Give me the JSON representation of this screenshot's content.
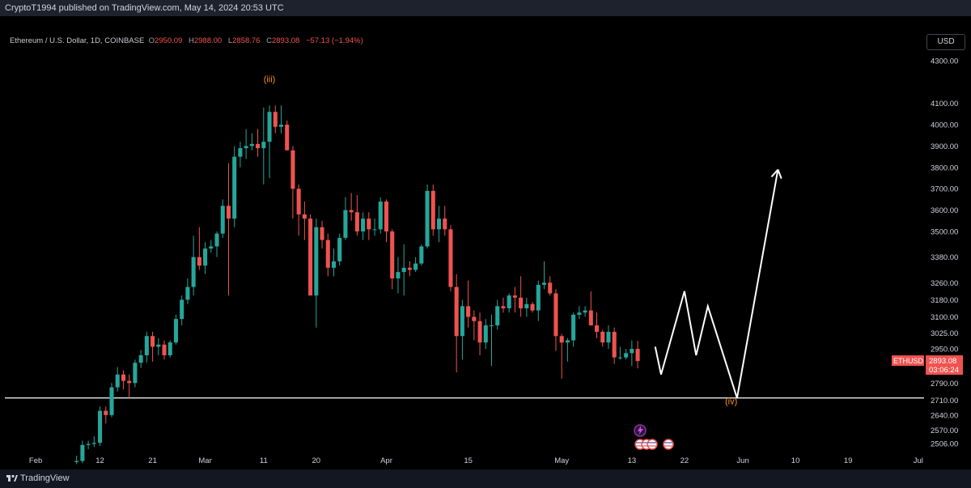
{
  "header": {
    "publish_text": "CryptoT1994 published on TradingView.com, May 14, 2024 20:53 UTC"
  },
  "legend": {
    "symbol_text": "Ethereum / U.S. Dollar, 1D, COINBASE",
    "open_label": "O",
    "open_value": "2950.09",
    "high_label": "H",
    "high_value": "2988.00",
    "low_label": "L",
    "low_value": "2858.76",
    "close_label": "C",
    "close_value": "2893.08",
    "change_text": "−57.13 (−1.94%)"
  },
  "currency_button": "USD",
  "price_tag": {
    "symbol": "ETHUSD",
    "price": "2893.08",
    "countdown": "03:06:24"
  },
  "footer": {
    "brand": "TradingView"
  },
  "colors": {
    "up": "#26a69a",
    "down": "#ef5350",
    "wave_label": "#f7931a",
    "projection": "#ffffff",
    "background": "#000000"
  },
  "icons": [
    "lightning-event-icon",
    "us-flag-event-icon"
  ],
  "chart_data": {
    "type": "candlestick",
    "title": "",
    "y_ticks": [
      4300,
      4100,
      4000,
      3900,
      3800,
      3700,
      3600,
      3500,
      3380,
      3260,
      3180,
      3100,
      3025,
      2950,
      2870,
      2790,
      2710,
      2640,
      2570,
      2506
    ],
    "y_tick_labels": [
      "4300.00",
      "4100.00",
      "4000.00",
      "3900.00",
      "3800.00",
      "3700.00",
      "3600.00",
      "3500.00",
      "3380.00",
      "3260.00",
      "3180.00",
      "3100.00",
      "3025.00",
      "2950.00",
      "2870.00",
      "2790.00",
      "2710.00",
      "2640.00",
      "2570.00",
      "2506.00"
    ],
    "x_labels": [
      {
        "label": "Feb",
        "date": "2024-02-01"
      },
      {
        "label": "12",
        "date": "2024-02-12"
      },
      {
        "label": "21",
        "date": "2024-02-21"
      },
      {
        "label": "Mar",
        "date": "2024-03-01"
      },
      {
        "label": "11",
        "date": "2024-03-11"
      },
      {
        "label": "20",
        "date": "2024-03-20"
      },
      {
        "label": "Apr",
        "date": "2024-04-01"
      },
      {
        "label": "15",
        "date": "2024-04-15"
      },
      {
        "label": "May",
        "date": "2024-05-01"
      },
      {
        "label": "13",
        "date": "2024-05-13"
      },
      {
        "label": "22",
        "date": "2024-05-22"
      },
      {
        "label": "Jun",
        "date": "2024-06-01"
      },
      {
        "label": "10",
        "date": "2024-06-10"
      },
      {
        "label": "19",
        "date": "2024-06-19"
      },
      {
        "label": "Jul",
        "date": "2024-07-01"
      }
    ],
    "series": [
      {
        "name": "ETHUSD",
        "ohlc": [
          {
            "date": "2024-02-08",
            "o": 2420,
            "h": 2450,
            "l": 2410,
            "c": 2425
          },
          {
            "date": "2024-02-09",
            "o": 2425,
            "h": 2520,
            "l": 2415,
            "c": 2500
          },
          {
            "date": "2024-02-10",
            "o": 2500,
            "h": 2520,
            "l": 2480,
            "c": 2505
          },
          {
            "date": "2024-02-11",
            "o": 2505,
            "h": 2540,
            "l": 2490,
            "c": 2510
          },
          {
            "date": "2024-02-12",
            "o": 2510,
            "h": 2680,
            "l": 2495,
            "c": 2660
          },
          {
            "date": "2024-02-13",
            "o": 2660,
            "h": 2680,
            "l": 2600,
            "c": 2640
          },
          {
            "date": "2024-02-14",
            "o": 2640,
            "h": 2790,
            "l": 2630,
            "c": 2770
          },
          {
            "date": "2024-02-15",
            "o": 2770,
            "h": 2865,
            "l": 2750,
            "c": 2830
          },
          {
            "date": "2024-02-16",
            "o": 2830,
            "h": 2850,
            "l": 2760,
            "c": 2800
          },
          {
            "date": "2024-02-17",
            "o": 2800,
            "h": 2830,
            "l": 2720,
            "c": 2790
          },
          {
            "date": "2024-02-18",
            "o": 2790,
            "h": 2900,
            "l": 2770,
            "c": 2885
          },
          {
            "date": "2024-02-19",
            "o": 2885,
            "h": 2945,
            "l": 2860,
            "c": 2920
          },
          {
            "date": "2024-02-20",
            "o": 2920,
            "h": 3030,
            "l": 2885,
            "c": 3010
          },
          {
            "date": "2024-02-21",
            "o": 3010,
            "h": 3030,
            "l": 2890,
            "c": 2960
          },
          {
            "date": "2024-02-22",
            "o": 2960,
            "h": 3000,
            "l": 2920,
            "c": 2970
          },
          {
            "date": "2024-02-23",
            "o": 2970,
            "h": 2990,
            "l": 2900,
            "c": 2920
          },
          {
            "date": "2024-02-24",
            "o": 2920,
            "h": 2990,
            "l": 2910,
            "c": 2980
          },
          {
            "date": "2024-02-25",
            "o": 2980,
            "h": 3110,
            "l": 2970,
            "c": 3090
          },
          {
            "date": "2024-02-26",
            "o": 3090,
            "h": 3200,
            "l": 3060,
            "c": 3180
          },
          {
            "date": "2024-02-27",
            "o": 3180,
            "h": 3280,
            "l": 3160,
            "c": 3240
          },
          {
            "date": "2024-02-28",
            "o": 3240,
            "h": 3480,
            "l": 3200,
            "c": 3380
          },
          {
            "date": "2024-02-29",
            "o": 3380,
            "h": 3520,
            "l": 3320,
            "c": 3340
          },
          {
            "date": "2024-03-01",
            "o": 3340,
            "h": 3450,
            "l": 3300,
            "c": 3420
          },
          {
            "date": "2024-03-02",
            "o": 3420,
            "h": 3460,
            "l": 3400,
            "c": 3430
          },
          {
            "date": "2024-03-03",
            "o": 3430,
            "h": 3500,
            "l": 3380,
            "c": 3490
          },
          {
            "date": "2024-03-04",
            "o": 3490,
            "h": 3650,
            "l": 3470,
            "c": 3620
          },
          {
            "date": "2024-03-05",
            "o": 3620,
            "h": 3820,
            "l": 3200,
            "c": 3560
          },
          {
            "date": "2024-03-06",
            "o": 3560,
            "h": 3900,
            "l": 3520,
            "c": 3850
          },
          {
            "date": "2024-03-07",
            "o": 3850,
            "h": 3920,
            "l": 3800,
            "c": 3890
          },
          {
            "date": "2024-03-08",
            "o": 3890,
            "h": 3980,
            "l": 3840,
            "c": 3900
          },
          {
            "date": "2024-03-09",
            "o": 3900,
            "h": 3960,
            "l": 3880,
            "c": 3910
          },
          {
            "date": "2024-03-10",
            "o": 3910,
            "h": 3980,
            "l": 3850,
            "c": 3890
          },
          {
            "date": "2024-03-11",
            "o": 3890,
            "h": 4080,
            "l": 3720,
            "c": 3920
          },
          {
            "date": "2024-03-12",
            "o": 3920,
            "h": 4090,
            "l": 3750,
            "c": 4060
          },
          {
            "date": "2024-03-13",
            "o": 4060,
            "h": 4090,
            "l": 3960,
            "c": 3990
          },
          {
            "date": "2024-03-14",
            "o": 3990,
            "h": 4090,
            "l": 3960,
            "c": 4000
          },
          {
            "date": "2024-03-15",
            "o": 4000,
            "h": 4020,
            "l": 3880,
            "c": 3880
          },
          {
            "date": "2024-03-16",
            "o": 3880,
            "h": 3900,
            "l": 3560,
            "c": 3700
          },
          {
            "date": "2024-03-17",
            "o": 3700,
            "h": 3720,
            "l": 3480,
            "c": 3580
          },
          {
            "date": "2024-03-18",
            "o": 3580,
            "h": 3640,
            "l": 3460,
            "c": 3560
          },
          {
            "date": "2024-03-19",
            "o": 3560,
            "h": 3580,
            "l": 3200,
            "c": 3200
          },
          {
            "date": "2024-03-20",
            "o": 3200,
            "h": 3560,
            "l": 3050,
            "c": 3520
          },
          {
            "date": "2024-03-21",
            "o": 3520,
            "h": 3550,
            "l": 3420,
            "c": 3460
          },
          {
            "date": "2024-03-22",
            "o": 3460,
            "h": 3490,
            "l": 3290,
            "c": 3330
          },
          {
            "date": "2024-03-23",
            "o": 3330,
            "h": 3420,
            "l": 3290,
            "c": 3360
          },
          {
            "date": "2024-03-24",
            "o": 3360,
            "h": 3490,
            "l": 3340,
            "c": 3470
          },
          {
            "date": "2024-03-25",
            "o": 3470,
            "h": 3660,
            "l": 3460,
            "c": 3600
          },
          {
            "date": "2024-03-26",
            "o": 3600,
            "h": 3680,
            "l": 3550,
            "c": 3590
          },
          {
            "date": "2024-03-27",
            "o": 3590,
            "h": 3670,
            "l": 3480,
            "c": 3500
          },
          {
            "date": "2024-03-28",
            "o": 3500,
            "h": 3590,
            "l": 3460,
            "c": 3560
          },
          {
            "date": "2024-03-29",
            "o": 3560,
            "h": 3590,
            "l": 3460,
            "c": 3510
          },
          {
            "date": "2024-03-30",
            "o": 3510,
            "h": 3560,
            "l": 3480,
            "c": 3510
          },
          {
            "date": "2024-03-31",
            "o": 3510,
            "h": 3660,
            "l": 3490,
            "c": 3640
          },
          {
            "date": "2024-04-01",
            "o": 3640,
            "h": 3650,
            "l": 3450,
            "c": 3500
          },
          {
            "date": "2024-04-02",
            "o": 3500,
            "h": 3510,
            "l": 3230,
            "c": 3280
          },
          {
            "date": "2024-04-03",
            "o": 3280,
            "h": 3380,
            "l": 3210,
            "c": 3310
          },
          {
            "date": "2024-04-04",
            "o": 3310,
            "h": 3440,
            "l": 3200,
            "c": 3330
          },
          {
            "date": "2024-04-05",
            "o": 3330,
            "h": 3360,
            "l": 3290,
            "c": 3320
          },
          {
            "date": "2024-04-06",
            "o": 3320,
            "h": 3380,
            "l": 3310,
            "c": 3350
          },
          {
            "date": "2024-04-07",
            "o": 3350,
            "h": 3440,
            "l": 3340,
            "c": 3430
          },
          {
            "date": "2024-04-08",
            "o": 3430,
            "h": 3720,
            "l": 3420,
            "c": 3690
          },
          {
            "date": "2024-04-09",
            "o": 3690,
            "h": 3720,
            "l": 3480,
            "c": 3510
          },
          {
            "date": "2024-04-10",
            "o": 3510,
            "h": 3620,
            "l": 3450,
            "c": 3560
          },
          {
            "date": "2024-04-11",
            "o": 3560,
            "h": 3620,
            "l": 3480,
            "c": 3510
          },
          {
            "date": "2024-04-12",
            "o": 3510,
            "h": 3530,
            "l": 3220,
            "c": 3240
          },
          {
            "date": "2024-04-13",
            "o": 3240,
            "h": 3300,
            "l": 2840,
            "c": 3010
          },
          {
            "date": "2024-04-14",
            "o": 3010,
            "h": 3180,
            "l": 2900,
            "c": 3150
          },
          {
            "date": "2024-04-15",
            "o": 3150,
            "h": 3270,
            "l": 3050,
            "c": 3100
          },
          {
            "date": "2024-04-16",
            "o": 3100,
            "h": 3130,
            "l": 2990,
            "c": 3080
          },
          {
            "date": "2024-04-17",
            "o": 3080,
            "h": 3120,
            "l": 2920,
            "c": 2980
          },
          {
            "date": "2024-04-18",
            "o": 2980,
            "h": 3090,
            "l": 2950,
            "c": 3060
          },
          {
            "date": "2024-04-19",
            "o": 3060,
            "h": 3110,
            "l": 2870,
            "c": 3060
          },
          {
            "date": "2024-04-20",
            "o": 3060,
            "h": 3180,
            "l": 3040,
            "c": 3150
          },
          {
            "date": "2024-04-21",
            "o": 3150,
            "h": 3190,
            "l": 3120,
            "c": 3140
          },
          {
            "date": "2024-04-22",
            "o": 3140,
            "h": 3210,
            "l": 3120,
            "c": 3200
          },
          {
            "date": "2024-04-23",
            "o": 3200,
            "h": 3240,
            "l": 3120,
            "c": 3190
          },
          {
            "date": "2024-04-24",
            "o": 3190,
            "h": 3290,
            "l": 3100,
            "c": 3140
          },
          {
            "date": "2024-04-25",
            "o": 3140,
            "h": 3190,
            "l": 3100,
            "c": 3160
          },
          {
            "date": "2024-04-26",
            "o": 3160,
            "h": 3170,
            "l": 3120,
            "c": 3130
          },
          {
            "date": "2024-04-27",
            "o": 3130,
            "h": 3270,
            "l": 3080,
            "c": 3250
          },
          {
            "date": "2024-04-28",
            "o": 3250,
            "h": 3360,
            "l": 3230,
            "c": 3260
          },
          {
            "date": "2024-04-29",
            "o": 3260,
            "h": 3290,
            "l": 3200,
            "c": 3210
          },
          {
            "date": "2024-04-30",
            "o": 3210,
            "h": 3230,
            "l": 2940,
            "c": 3010
          },
          {
            "date": "2024-05-01",
            "o": 3010,
            "h": 3020,
            "l": 2810,
            "c": 2980
          },
          {
            "date": "2024-05-02",
            "o": 2980,
            "h": 3000,
            "l": 2890,
            "c": 2990
          },
          {
            "date": "2024-05-03",
            "o": 2990,
            "h": 3120,
            "l": 2960,
            "c": 3110
          },
          {
            "date": "2024-05-04",
            "o": 3110,
            "h": 3150,
            "l": 3090,
            "c": 3120
          },
          {
            "date": "2024-05-05",
            "o": 3120,
            "h": 3150,
            "l": 3100,
            "c": 3130
          },
          {
            "date": "2024-05-06",
            "o": 3130,
            "h": 3220,
            "l": 3060,
            "c": 3060
          },
          {
            "date": "2024-05-07",
            "o": 3060,
            "h": 3120,
            "l": 3000,
            "c": 3030
          },
          {
            "date": "2024-05-08",
            "o": 3030,
            "h": 3040,
            "l": 2960,
            "c": 2980
          },
          {
            "date": "2024-05-09",
            "o": 2980,
            "h": 3060,
            "l": 2950,
            "c": 3030
          },
          {
            "date": "2024-05-10",
            "o": 3030,
            "h": 3050,
            "l": 2880,
            "c": 2910
          },
          {
            "date": "2024-05-11",
            "o": 2910,
            "h": 2960,
            "l": 2900,
            "c": 2910
          },
          {
            "date": "2024-05-12",
            "o": 2910,
            "h": 2950,
            "l": 2900,
            "c": 2930
          },
          {
            "date": "2024-05-13",
            "o": 2930,
            "h": 2990,
            "l": 2870,
            "c": 2950
          },
          {
            "date": "2024-05-14",
            "o": 2950.09,
            "h": 2988.0,
            "l": 2858.76,
            "c": 2893.08
          }
        ]
      }
    ],
    "support_level": 2720,
    "wave_labels": [
      {
        "text": "(iii)",
        "date": "2024-03-12",
        "price": 4200
      },
      {
        "text": "(iv)",
        "date": "2024-05-30",
        "price": 2690
      }
    ],
    "projection_path": [
      {
        "date": "2024-05-17",
        "price": 2960
      },
      {
        "date": "2024-05-18",
        "price": 2830
      },
      {
        "date": "2024-05-22",
        "price": 3220
      },
      {
        "date": "2024-05-24",
        "price": 2920
      },
      {
        "date": "2024-05-26",
        "price": 3150
      },
      {
        "date": "2024-05-31",
        "price": 2720
      },
      {
        "date": "2024-06-07",
        "price": 3790
      }
    ],
    "ylim": [
      2450,
      4440
    ],
    "xlim": [
      "2024-01-27",
      "2024-07-02"
    ]
  }
}
